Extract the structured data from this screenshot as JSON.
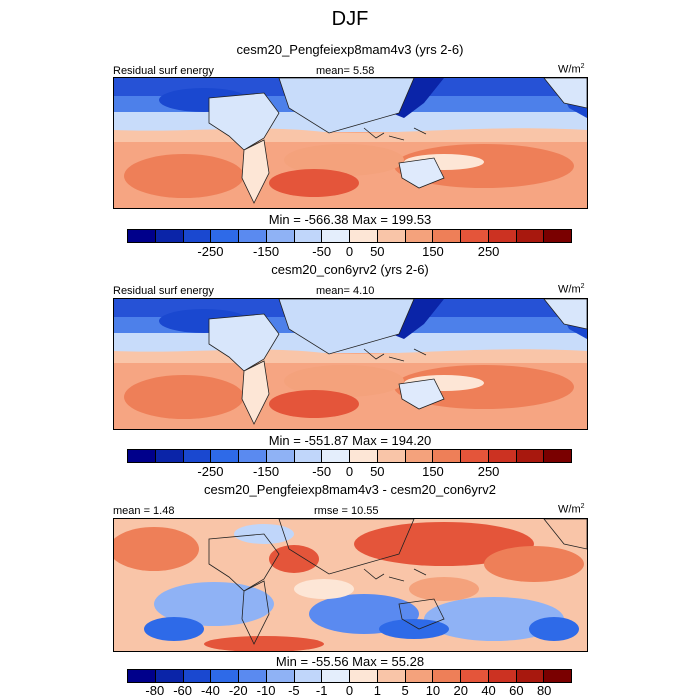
{
  "title": "DJF",
  "panels": [
    {
      "subtitle": "cesm20_Pengfeiexp8mam4v3 (yrs 2-6)",
      "left_label": "Residual surf energy",
      "center_label": "mean=   5.58",
      "units": "W/m",
      "units_sup": "2",
      "minmax": "Min = -566.38 Max = 199.53"
    },
    {
      "subtitle": "cesm20_con6yrv2 (yrs 2-6)",
      "left_label": "Residual surf energy",
      "center_label": "mean=   4.10",
      "units": "W/m",
      "units_sup": "2",
      "minmax": "Min = -551.87 Max = 194.20"
    },
    {
      "subtitle": "cesm20_Pengfeiexp8mam4v3 - cesm20_con6yrv2",
      "left_label": "mean =   1.48",
      "center_label": "rmse =  10.55",
      "units": "W/m",
      "units_sup": "2",
      "minmax": "Min = -55.56 Max =  55.28"
    }
  ],
  "colorbar_main": {
    "colors": [
      "#00008b",
      "#0a24a8",
      "#1a48d0",
      "#2e6ae8",
      "#5a8af0",
      "#8fb2f5",
      "#c0d6fa",
      "#e4eefc",
      "#fde6d6",
      "#f9c5a8",
      "#f4a27c",
      "#ee7f58",
      "#e4553a",
      "#cc3222",
      "#a8180e",
      "#7a0000"
    ],
    "ticks": [
      "-250",
      "-150",
      "-50",
      "0",
      "50",
      "150",
      "250"
    ]
  },
  "colorbar_diff": {
    "colors": [
      "#00008b",
      "#0a24a8",
      "#1a48d0",
      "#2e6ae8",
      "#5a8af0",
      "#8fb2f5",
      "#c0d6fa",
      "#e4eefc",
      "#fde6d6",
      "#f9c5a8",
      "#f4a27c",
      "#ee7f58",
      "#e4553a",
      "#cc3222",
      "#a8180e",
      "#7a0000"
    ],
    "ticks": [
      "-80",
      "-60",
      "-40",
      "-20",
      "-10",
      "-5",
      "-1",
      "0",
      "1",
      "5",
      "10",
      "20",
      "40",
      "60",
      "80"
    ]
  }
}
